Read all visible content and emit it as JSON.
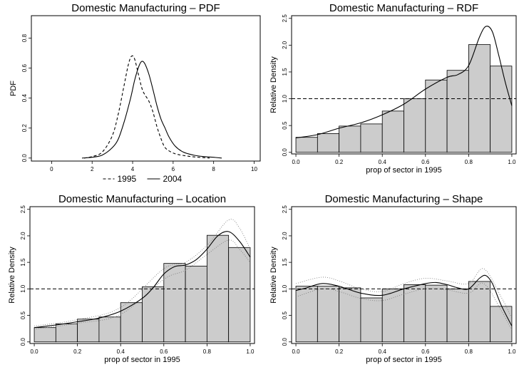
{
  "chart_data": [
    {
      "type": "line",
      "title": "Domestic Manufacturing – PDF",
      "xlabel": "",
      "ylabel": "PDF",
      "xlim": [
        -1,
        10.3
      ],
      "ylim": [
        -0.02,
        0.95
      ],
      "xticks": [
        "0",
        "2",
        "4",
        "6",
        "8",
        "10"
      ],
      "yticks": [
        "0.0",
        "0.2",
        "0.4",
        "0.6",
        "0.8"
      ],
      "legend": {
        "placement": "bottom-center",
        "entries": [
          "1995",
          "2004"
        ],
        "line_styles": [
          "dashed",
          "solid"
        ]
      },
      "series": [
        {
          "name": "1995",
          "style": "dashed",
          "x": [
            1.6,
            2.0,
            2.5,
            3.0,
            3.3,
            3.6,
            3.8,
            3.95,
            4.1,
            4.3,
            4.5,
            4.8,
            5.0,
            5.2,
            5.4,
            5.6,
            5.9,
            6.2,
            6.6,
            7.0,
            7.4,
            7.8
          ],
          "y": [
            0.0,
            0.01,
            0.04,
            0.15,
            0.3,
            0.5,
            0.63,
            0.68,
            0.66,
            0.55,
            0.45,
            0.38,
            0.31,
            0.21,
            0.13,
            0.07,
            0.04,
            0.025,
            0.015,
            0.008,
            0.004,
            0.0
          ]
        },
        {
          "name": "2004",
          "style": "solid",
          "x": [
            1.5,
            2.0,
            2.5,
            3.0,
            3.3,
            3.6,
            3.9,
            4.1,
            4.3,
            4.45,
            4.6,
            4.8,
            5.0,
            5.2,
            5.4,
            5.6,
            5.8,
            6.1,
            6.5,
            7.0,
            7.5,
            8.0,
            8.4
          ],
          "y": [
            0.0,
            0.005,
            0.02,
            0.07,
            0.13,
            0.25,
            0.4,
            0.52,
            0.61,
            0.645,
            0.63,
            0.56,
            0.46,
            0.35,
            0.26,
            0.2,
            0.14,
            0.08,
            0.04,
            0.02,
            0.01,
            0.005,
            0.0
          ]
        }
      ]
    },
    {
      "type": "bar",
      "title": "Domestic Manufacturing – RDF",
      "xlabel": "prop of sector in 1995",
      "ylabel": "Relative Density",
      "xlim": [
        -0.02,
        1.02
      ],
      "ylim": [
        -0.03,
        2.55
      ],
      "xticks": [
        "0.0",
        "0.2",
        "0.4",
        "0.6",
        "0.8",
        "1.0"
      ],
      "yticks": [
        "0.0",
        "0.5",
        "1.0",
        "1.5",
        "2.0",
        "2.5"
      ],
      "reference_line": 1.0,
      "bin_width": 0.1,
      "values": [
        0.28,
        0.35,
        0.49,
        0.53,
        0.77,
        1.0,
        1.35,
        1.53,
        2.01,
        1.61
      ],
      "smooth": {
        "x": [
          0.0,
          0.1,
          0.2,
          0.3,
          0.4,
          0.5,
          0.6,
          0.7,
          0.75,
          0.8,
          0.85,
          0.88,
          0.91,
          0.94,
          0.97,
          1.0
        ],
        "y": [
          0.27,
          0.33,
          0.45,
          0.55,
          0.7,
          0.9,
          1.18,
          1.4,
          1.45,
          1.62,
          2.15,
          2.35,
          2.25,
          1.8,
          1.3,
          0.87
        ]
      }
    },
    {
      "type": "bar",
      "title": "Domestic Manufacturing – Location",
      "xlabel": "prop of sector in 1995",
      "ylabel": "Relative Density",
      "xlim": [
        -0.02,
        1.02
      ],
      "ylim": [
        -0.03,
        2.55
      ],
      "xticks": [
        "0.0",
        "0.2",
        "0.4",
        "0.6",
        "0.8",
        "1.0"
      ],
      "yticks": [
        "0.0",
        "0.5",
        "1.0",
        "1.5",
        "2.0",
        "2.5"
      ],
      "reference_line": 1.0,
      "bin_width": 0.1,
      "values": [
        0.27,
        0.34,
        0.43,
        0.47,
        0.74,
        1.04,
        1.48,
        1.43,
        2.01,
        1.78
      ],
      "smooth": {
        "x": [
          0.0,
          0.1,
          0.2,
          0.3,
          0.4,
          0.5,
          0.55,
          0.6,
          0.65,
          0.7,
          0.75,
          0.8,
          0.85,
          0.9,
          0.95,
          1.0
        ],
        "y": [
          0.27,
          0.32,
          0.38,
          0.45,
          0.58,
          0.82,
          1.02,
          1.28,
          1.42,
          1.45,
          1.55,
          1.75,
          2.0,
          2.08,
          1.9,
          1.6
        ]
      },
      "band_upper": {
        "x": [
          0.0,
          0.2,
          0.4,
          0.6,
          0.7,
          0.8,
          0.9,
          0.95,
          1.0
        ],
        "y": [
          0.3,
          0.42,
          0.65,
          1.38,
          1.5,
          1.82,
          2.3,
          2.15,
          1.75
        ]
      },
      "band_lower": {
        "x": [
          0.0,
          0.2,
          0.4,
          0.6,
          0.7,
          0.8,
          0.9,
          0.95,
          1.0
        ],
        "y": [
          0.24,
          0.35,
          0.52,
          1.18,
          1.35,
          1.65,
          1.92,
          1.75,
          1.5
        ]
      }
    },
    {
      "type": "bar",
      "title": "Domestic Manufacturing – Shape",
      "xlabel": "prop of sector in 1995",
      "ylabel": "Relative Density",
      "xlim": [
        -0.02,
        1.02
      ],
      "ylim": [
        -0.03,
        2.55
      ],
      "xticks": [
        "0.0",
        "0.2",
        "0.4",
        "0.6",
        "0.8",
        "1.0"
      ],
      "yticks": [
        "0.0",
        "0.5",
        "1.0",
        "1.5",
        "2.0",
        "2.5"
      ],
      "reference_line": 1.0,
      "bin_width": 0.1,
      "values": [
        1.05,
        1.05,
        1.02,
        0.83,
        1.0,
        1.08,
        1.07,
        1.0,
        1.14,
        0.67
      ],
      "smooth": {
        "x": [
          0.0,
          0.05,
          0.12,
          0.2,
          0.3,
          0.4,
          0.5,
          0.6,
          0.65,
          0.7,
          0.75,
          0.8,
          0.85,
          0.88,
          0.91,
          0.95,
          1.0
        ],
        "y": [
          0.97,
          1.02,
          1.1,
          1.05,
          0.92,
          0.88,
          1.0,
          1.1,
          1.12,
          1.08,
          1.02,
          1.0,
          1.2,
          1.25,
          1.1,
          0.7,
          0.3
        ]
      },
      "band_upper": {
        "x": [
          0.0,
          0.12,
          0.2,
          0.3,
          0.4,
          0.5,
          0.6,
          0.7,
          0.8,
          0.87,
          0.95,
          1.0
        ],
        "y": [
          1.1,
          1.22,
          1.15,
          1.0,
          0.95,
          1.1,
          1.2,
          1.15,
          1.1,
          1.38,
          0.85,
          0.45
        ]
      },
      "band_lower": {
        "x": [
          0.0,
          0.12,
          0.2,
          0.3,
          0.4,
          0.5,
          0.6,
          0.7,
          0.8,
          0.87,
          0.95,
          1.0
        ],
        "y": [
          0.85,
          1.0,
          0.95,
          0.82,
          0.78,
          0.9,
          1.0,
          0.98,
          0.92,
          1.1,
          0.6,
          0.22
        ]
      }
    }
  ]
}
